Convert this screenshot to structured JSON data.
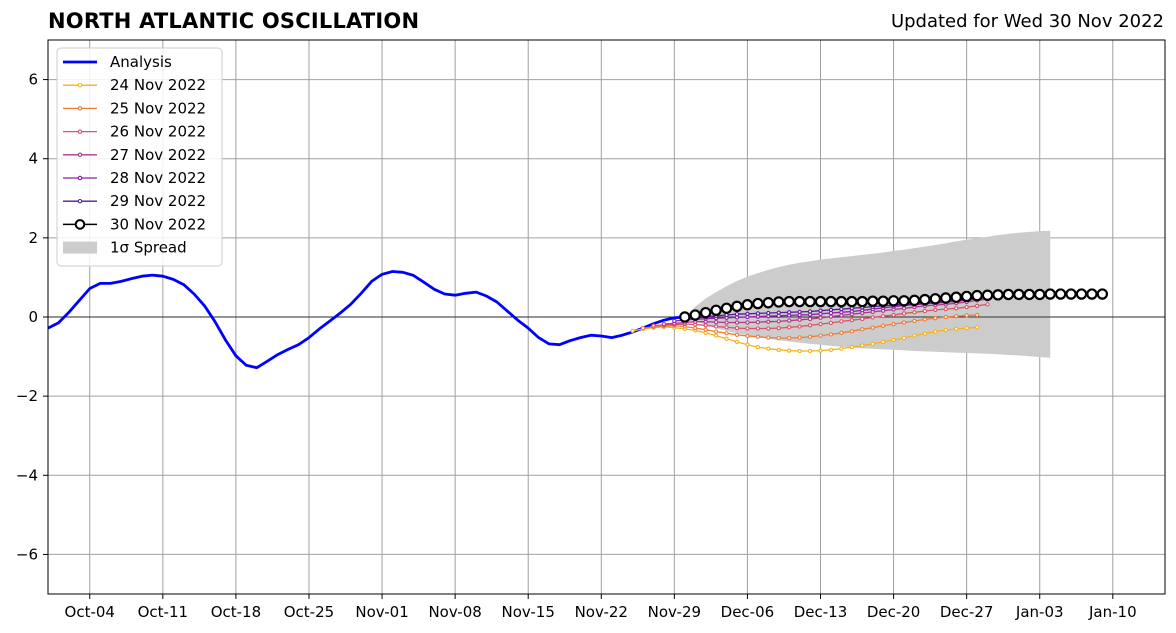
{
  "header": {
    "title": "NORTH ATLANTIC OSCILLATION",
    "updated": "Updated for Wed 30 Nov 2022"
  },
  "chart_data": {
    "type": "line",
    "title": "NORTH ATLANTIC OSCILLATION",
    "subtitle": "Updated for Wed 30 Nov 2022",
    "xlabel": "",
    "ylabel": "",
    "xlim": [
      "2022-09-30",
      "2023-01-15"
    ],
    "ylim": [
      -7,
      7
    ],
    "grid": true,
    "legend_position": "top-left",
    "x_ticks": [
      "2022-10-04",
      "2022-10-11",
      "2022-10-18",
      "2022-10-25",
      "2022-11-01",
      "2022-11-08",
      "2022-11-15",
      "2022-11-22",
      "2022-11-29",
      "2022-12-06",
      "2022-12-13",
      "2022-12-20",
      "2022-12-27",
      "2023-01-03",
      "2023-01-10"
    ],
    "x_tick_labels": [
      "Oct-04",
      "Oct-11",
      "Oct-18",
      "Oct-25",
      "Nov-01",
      "Nov-08",
      "Nov-15",
      "Nov-22",
      "Nov-29",
      "Dec-06",
      "Dec-13",
      "Dec-20",
      "Dec-27",
      "Jan-03",
      "Jan-10"
    ],
    "y_ticks": [
      -6,
      -4,
      -2,
      0,
      2,
      4,
      6
    ],
    "y_tick_labels": [
      "−6",
      "−4",
      "−2",
      "0",
      "2",
      "4",
      "6"
    ],
    "analysis": {
      "name": "Analysis",
      "color": "#0000ff",
      "x": [
        "2022-09-30",
        "2022-10-01",
        "2022-10-02",
        "2022-10-03",
        "2022-10-04",
        "2022-10-05",
        "2022-10-06",
        "2022-10-07",
        "2022-10-08",
        "2022-10-09",
        "2022-10-10",
        "2022-10-11",
        "2022-10-12",
        "2022-10-13",
        "2022-10-14",
        "2022-10-15",
        "2022-10-16",
        "2022-10-17",
        "2022-10-18",
        "2022-10-19",
        "2022-10-20",
        "2022-10-21",
        "2022-10-22",
        "2022-10-23",
        "2022-10-24",
        "2022-10-25",
        "2022-10-26",
        "2022-10-27",
        "2022-10-28",
        "2022-10-29",
        "2022-10-30",
        "2022-10-31",
        "2022-11-01",
        "2022-11-02",
        "2022-11-03",
        "2022-11-04",
        "2022-11-05",
        "2022-11-06",
        "2022-11-07",
        "2022-11-08",
        "2022-11-09",
        "2022-11-10",
        "2022-11-11",
        "2022-11-12",
        "2022-11-13",
        "2022-11-14",
        "2022-11-15",
        "2022-11-16",
        "2022-11-17",
        "2022-11-18",
        "2022-11-19",
        "2022-11-20",
        "2022-11-21",
        "2022-11-22",
        "2022-11-23",
        "2022-11-24",
        "2022-11-25",
        "2022-11-26",
        "2022-11-27",
        "2022-11-28",
        "2022-11-29",
        "2022-11-30"
      ],
      "y": [
        -0.28,
        -0.15,
        0.12,
        0.42,
        0.72,
        0.85,
        0.85,
        0.9,
        0.97,
        1.03,
        1.06,
        1.03,
        0.95,
        0.82,
        0.58,
        0.28,
        -0.12,
        -0.58,
        -0.98,
        -1.22,
        -1.28,
        -1.12,
        -0.95,
        -0.82,
        -0.7,
        -0.52,
        -0.3,
        -0.1,
        0.1,
        0.32,
        0.6,
        0.9,
        1.08,
        1.15,
        1.13,
        1.05,
        0.88,
        0.7,
        0.58,
        0.55,
        0.6,
        0.63,
        0.53,
        0.38,
        0.15,
        -0.08,
        -0.28,
        -0.52,
        -0.68,
        -0.7,
        -0.6,
        -0.52,
        -0.46,
        -0.48,
        -0.52,
        -0.46,
        -0.38,
        -0.28,
        -0.17,
        -0.08,
        -0.02,
        0.0
      ]
    },
    "forecasts": [
      {
        "name": "24 Nov 2022",
        "color": "#f5b21b",
        "start": "2022-11-25",
        "y": [
          -0.35,
          -0.3,
          -0.27,
          -0.25,
          -0.27,
          -0.3,
          -0.34,
          -0.4,
          -0.47,
          -0.55,
          -0.63,
          -0.7,
          -0.76,
          -0.8,
          -0.83,
          -0.85,
          -0.86,
          -0.86,
          -0.85,
          -0.83,
          -0.8,
          -0.76,
          -0.72,
          -0.68,
          -0.63,
          -0.58,
          -0.53,
          -0.47,
          -0.42,
          -0.37,
          -0.33,
          -0.3,
          -0.28,
          -0.26
        ]
      },
      {
        "name": "25 Nov 2022",
        "color": "#ef7d3a",
        "start": "2022-11-26",
        "y": [
          -0.28,
          -0.25,
          -0.23,
          -0.22,
          -0.24,
          -0.28,
          -0.32,
          -0.37,
          -0.41,
          -0.45,
          -0.48,
          -0.5,
          -0.52,
          -0.53,
          -0.53,
          -0.52,
          -0.5,
          -0.47,
          -0.44,
          -0.4,
          -0.36,
          -0.31,
          -0.27,
          -0.22,
          -0.18,
          -0.14,
          -0.1,
          -0.06,
          -0.03,
          0.0,
          0.02,
          0.04,
          0.05
        ]
      },
      {
        "name": "26 Nov 2022",
        "color": "#d9546b",
        "start": "2022-11-27",
        "y": [
          -0.22,
          -0.2,
          -0.19,
          -0.18,
          -0.19,
          -0.21,
          -0.24,
          -0.26,
          -0.28,
          -0.29,
          -0.29,
          -0.29,
          -0.28,
          -0.26,
          -0.24,
          -0.21,
          -0.18,
          -0.15,
          -0.11,
          -0.08,
          -0.05,
          -0.01,
          0.02,
          0.05,
          0.09,
          0.12,
          0.15,
          0.18,
          0.2,
          0.22,
          0.25,
          0.28,
          0.32
        ]
      },
      {
        "name": "27 Nov 2022",
        "color": "#b1378a",
        "start": "2022-11-28",
        "y": [
          -0.18,
          -0.16,
          -0.14,
          -0.12,
          -0.12,
          -0.13,
          -0.14,
          -0.14,
          -0.14,
          -0.13,
          -0.12,
          -0.11,
          -0.09,
          -0.07,
          -0.05,
          -0.02,
          0.01,
          0.04,
          0.07,
          0.1,
          0.13,
          0.16,
          0.19,
          0.22,
          0.25,
          0.28,
          0.3,
          0.32,
          0.35,
          0.38,
          0.42,
          0.45
        ]
      },
      {
        "name": "28 Nov 2022",
        "color": "#8e1fa8",
        "start": "2022-11-29",
        "y": [
          -0.1,
          -0.08,
          -0.06,
          -0.04,
          -0.03,
          -0.02,
          -0.01,
          0.0,
          0.01,
          0.02,
          0.03,
          0.04,
          0.05,
          0.06,
          0.08,
          0.1,
          0.12,
          0.14,
          0.17,
          0.2,
          0.23,
          0.26,
          0.29,
          0.31,
          0.33,
          0.35,
          0.37,
          0.4,
          0.43,
          0.46,
          0.5
        ]
      },
      {
        "name": "29 Nov 2022",
        "color": "#5a17a0",
        "start": "2022-11-30",
        "y": [
          -0.05,
          -0.02,
          0.0,
          0.03,
          0.05,
          0.07,
          0.08,
          0.09,
          0.1,
          0.11,
          0.12,
          0.13,
          0.14,
          0.16,
          0.18,
          0.2,
          0.22,
          0.24,
          0.26,
          0.28,
          0.3,
          0.32,
          0.34,
          0.36,
          0.38,
          0.4,
          0.42,
          0.45,
          0.48,
          0.52
        ]
      },
      {
        "name": "30 Nov 2022",
        "color": "#000000",
        "start": "2022-11-30",
        "marker": "open-circle",
        "y": [
          0.0,
          0.05,
          0.11,
          0.17,
          0.22,
          0.27,
          0.31,
          0.34,
          0.36,
          0.38,
          0.39,
          0.39,
          0.39,
          0.39,
          0.39,
          0.39,
          0.39,
          0.39,
          0.4,
          0.4,
          0.41,
          0.41,
          0.42,
          0.44,
          0.46,
          0.48,
          0.5,
          0.52,
          0.54,
          0.55,
          0.56,
          0.57,
          0.57,
          0.57,
          0.57,
          0.58,
          0.58,
          0.58,
          0.58,
          0.58,
          0.58
        ]
      }
    ],
    "spread": {
      "name": "1σ Spread",
      "color": "#cccccc",
      "start": "2022-11-30",
      "upper": [
        0.0,
        0.26,
        0.47,
        0.63,
        0.78,
        0.91,
        1.02,
        1.11,
        1.19,
        1.26,
        1.32,
        1.37,
        1.41,
        1.45,
        1.48,
        1.51,
        1.54,
        1.57,
        1.6,
        1.63,
        1.67,
        1.7,
        1.74,
        1.78,
        1.82,
        1.86,
        1.91,
        1.95,
        1.99,
        2.03,
        2.07,
        2.1,
        2.13,
        2.15,
        2.17,
        2.18
      ],
      "lower": [
        0.0,
        -0.1,
        -0.2,
        -0.28,
        -0.35,
        -0.41,
        -0.46,
        -0.51,
        -0.55,
        -0.59,
        -0.62,
        -0.65,
        -0.68,
        -0.7,
        -0.73,
        -0.75,
        -0.77,
        -0.79,
        -0.8,
        -0.82,
        -0.83,
        -0.84,
        -0.86,
        -0.87,
        -0.88,
        -0.89,
        -0.9,
        -0.91,
        -0.92,
        -0.93,
        -0.94,
        -0.96,
        -0.97,
        -0.99,
        -1.01,
        -1.03
      ]
    },
    "legend": [
      "Analysis",
      "24 Nov 2022",
      "25 Nov 2022",
      "26 Nov 2022",
      "27 Nov 2022",
      "28 Nov 2022",
      "29 Nov 2022",
      "30 Nov 2022",
      "1σ Spread"
    ]
  }
}
